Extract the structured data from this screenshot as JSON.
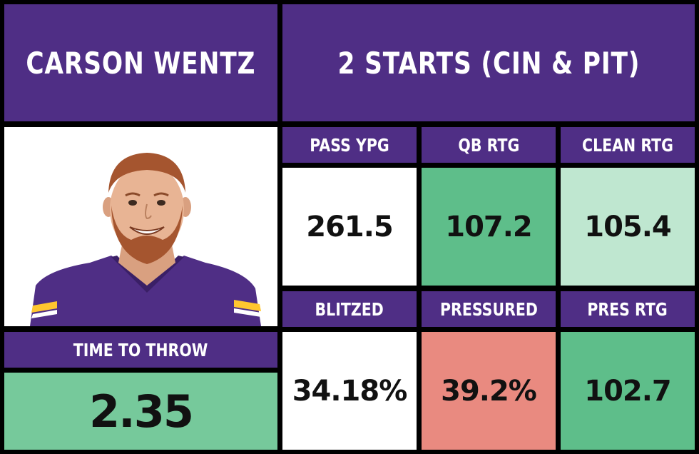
{
  "player": {
    "name": "CARSON WENTZ",
    "starts": "2 STARTS (CIN & PIT)"
  },
  "time_to_throw": {
    "label": "TIME TO THROW",
    "value": "2.35"
  },
  "stats": [
    {
      "label": "PASS YPG",
      "value": "261.5"
    },
    {
      "label": "QB RTG",
      "value": "107.2"
    },
    {
      "label": "CLEAN RTG",
      "value": "105.4"
    },
    {
      "label": "BLITZED",
      "value": "34.18%"
    },
    {
      "label": "PRESSURED",
      "value": "39.2%"
    },
    {
      "label": "PRES RTG",
      "value": "102.7"
    }
  ],
  "colors": {
    "purple": "#4f2e85",
    "white": "#ffffff",
    "green_strong": "#5ebe8a",
    "green_light": "#bfe7d0",
    "green_mid": "#76c99b",
    "red_light": "#e98a80",
    "gold": "#ffc62f"
  }
}
